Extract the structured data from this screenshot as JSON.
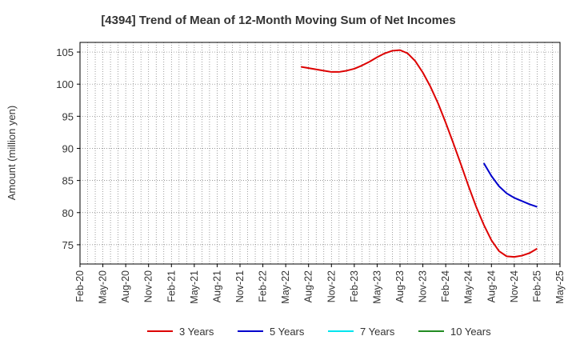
{
  "chart_data": {
    "type": "line",
    "title": "[4394]  Trend of Mean of 12-Month Moving Sum of Net Incomes",
    "ylabel": "Amount (million yen)",
    "xlabel": "",
    "ylim": [
      72,
      106.5
    ],
    "yticks": [
      75,
      80,
      85,
      90,
      95,
      100,
      105
    ],
    "x_ticks": [
      "Feb-20",
      "May-20",
      "Aug-20",
      "Nov-20",
      "Feb-21",
      "May-21",
      "Aug-21",
      "Nov-21",
      "Feb-22",
      "May-22",
      "Aug-22",
      "Nov-22",
      "Feb-23",
      "May-23",
      "Aug-23",
      "Nov-23",
      "Feb-24",
      "May-24",
      "Aug-24",
      "Nov-24",
      "Feb-25",
      "May-25"
    ],
    "grid": true,
    "legend_position": "bottom",
    "series": [
      {
        "name": "3 Years",
        "color": "#dd0000",
        "points": [
          [
            "Jul-22",
            102.7
          ],
          [
            "Aug-22",
            102.5
          ],
          [
            "Sep-22",
            102.3
          ],
          [
            "Oct-22",
            102.1
          ],
          [
            "Nov-22",
            101.9
          ],
          [
            "Dec-22",
            101.9
          ],
          [
            "Jan-23",
            102.1
          ],
          [
            "Feb-23",
            102.4
          ],
          [
            "Mar-23",
            102.9
          ],
          [
            "Apr-23",
            103.5
          ],
          [
            "May-23",
            104.2
          ],
          [
            "Jun-23",
            104.8
          ],
          [
            "Jul-23",
            105.2
          ],
          [
            "Aug-23",
            105.3
          ],
          [
            "Sep-23",
            104.8
          ],
          [
            "Oct-23",
            103.6
          ],
          [
            "Nov-23",
            101.8
          ],
          [
            "Dec-23",
            99.6
          ],
          [
            "Jan-24",
            97.0
          ],
          [
            "Feb-24",
            94.0
          ],
          [
            "Mar-24",
            90.8
          ],
          [
            "Apr-24",
            87.5
          ],
          [
            "May-24",
            84.1
          ],
          [
            "Jun-24",
            80.9
          ],
          [
            "Jul-24",
            78.1
          ],
          [
            "Aug-24",
            75.7
          ],
          [
            "Sep-24",
            74.0
          ],
          [
            "Oct-24",
            73.2
          ],
          [
            "Nov-24",
            73.1
          ],
          [
            "Dec-24",
            73.3
          ],
          [
            "Jan-25",
            73.7
          ],
          [
            "Feb-25",
            74.4
          ]
        ]
      },
      {
        "name": "5 Years",
        "color": "#0000cc",
        "points": [
          [
            "Jul-24",
            87.7
          ],
          [
            "Aug-24",
            85.7
          ],
          [
            "Sep-24",
            84.1
          ],
          [
            "Oct-24",
            83.0
          ],
          [
            "Nov-24",
            82.3
          ],
          [
            "Dec-24",
            81.8
          ],
          [
            "Jan-25",
            81.3
          ],
          [
            "Feb-25",
            80.9
          ]
        ]
      },
      {
        "name": "7 Years",
        "color": "#00e5ee",
        "points": []
      },
      {
        "name": "10 Years",
        "color": "#228b22",
        "points": []
      }
    ]
  }
}
